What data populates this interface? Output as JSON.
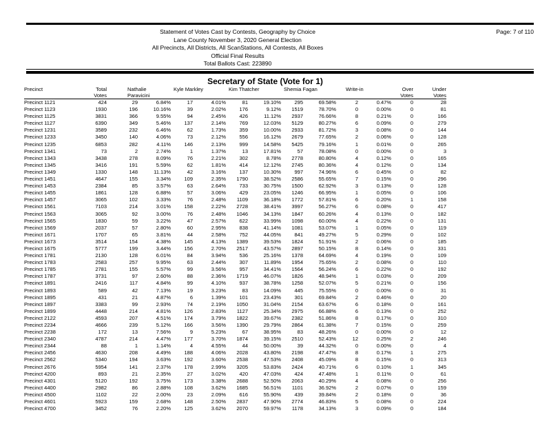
{
  "report": {
    "title_lines": [
      "Statement of Votes Cast by Contests, Geography by Choice",
      "Lane County November 3, 2020 General Election",
      "All Precincts, All Districts, All ScanStations, All Contests, All Boxes",
      "Official Final Results",
      "Total Ballots Cast: 223890"
    ],
    "page_label": "Page: 7 of 110",
    "contest_title": "Secretary of State (Vote for 1)"
  },
  "table": {
    "columns": [
      {
        "label": "Precinct",
        "label2": ""
      },
      {
        "label": "Total",
        "label2": "Votes"
      },
      {
        "label": "Nathalie",
        "label2": "Paravicini"
      },
      {
        "label": "Kyle Markley",
        "label2": ""
      },
      {
        "label": "Kim Thatcher",
        "label2": ""
      },
      {
        "label": "Shemia Fagan",
        "label2": ""
      },
      {
        "label": "Write-in",
        "label2": ""
      },
      {
        "label": "Over",
        "label2": "Votes"
      },
      {
        "label": "Under",
        "label2": "Votes"
      }
    ],
    "rows": [
      [
        "Precinct 1121",
        "424",
        "29",
        "6.84%",
        "17",
        "4.01%",
        "81",
        "19.10%",
        "295",
        "69.58%",
        "2",
        "0.47%",
        "0",
        "28"
      ],
      [
        "Precinct 1123",
        "1930",
        "196",
        "10.16%",
        "39",
        "2.02%",
        "176",
        "9.12%",
        "1519",
        "78.70%",
        "0",
        "0.00%",
        "0",
        "81"
      ],
      [
        "Precinct 1125",
        "3831",
        "366",
        "9.55%",
        "94",
        "2.45%",
        "426",
        "11.12%",
        "2937",
        "76.66%",
        "8",
        "0.21%",
        "0",
        "166"
      ],
      [
        "Precinct 1127",
        "6390",
        "349",
        "5.46%",
        "137",
        "2.14%",
        "769",
        "12.03%",
        "5129",
        "80.27%",
        "6",
        "0.09%",
        "0",
        "279"
      ],
      [
        "Precinct 1231",
        "3589",
        "232",
        "6.46%",
        "62",
        "1.73%",
        "359",
        "10.00%",
        "2933",
        "81.72%",
        "3",
        "0.08%",
        "0",
        "144"
      ],
      [
        "Precinct 1233",
        "3450",
        "140",
        "4.06%",
        "73",
        "2.12%",
        "556",
        "16.12%",
        "2679",
        "77.65%",
        "2",
        "0.06%",
        "0",
        "128"
      ],
      [
        "Precinct 1235",
        "6853",
        "282",
        "4.11%",
        "146",
        "2.13%",
        "999",
        "14.58%",
        "5425",
        "79.16%",
        "1",
        "0.01%",
        "0",
        "265"
      ],
      [
        "Precinct 1341",
        "73",
        "2",
        "2.74%",
        "1",
        "1.37%",
        "13",
        "17.81%",
        "57",
        "78.08%",
        "0",
        "0.00%",
        "0",
        "3"
      ],
      [
        "Precinct 1343",
        "3438",
        "278",
        "8.09%",
        "76",
        "2.21%",
        "302",
        "8.78%",
        "2778",
        "80.80%",
        "4",
        "0.12%",
        "0",
        "165"
      ],
      [
        "Precinct 1345",
        "3416",
        "191",
        "5.59%",
        "62",
        "1.81%",
        "414",
        "12.12%",
        "2745",
        "80.36%",
        "4",
        "0.12%",
        "0",
        "134"
      ],
      [
        "Precinct 1349",
        "1330",
        "148",
        "11.13%",
        "42",
        "3.16%",
        "137",
        "10.30%",
        "997",
        "74.96%",
        "6",
        "0.45%",
        "0",
        "82"
      ],
      [
        "Precinct 1451",
        "4647",
        "155",
        "3.34%",
        "109",
        "2.35%",
        "1790",
        "38.52%",
        "2586",
        "55.65%",
        "7",
        "0.15%",
        "0",
        "296"
      ],
      [
        "Precinct 1453",
        "2384",
        "85",
        "3.57%",
        "63",
        "2.64%",
        "733",
        "30.75%",
        "1500",
        "62.92%",
        "3",
        "0.13%",
        "0",
        "128"
      ],
      [
        "Precinct 1455",
        "1861",
        "128",
        "6.88%",
        "57",
        "3.06%",
        "429",
        "23.05%",
        "1246",
        "66.95%",
        "1",
        "0.05%",
        "0",
        "106"
      ],
      [
        "Precinct 1457",
        "3065",
        "102",
        "3.33%",
        "76",
        "2.48%",
        "1109",
        "36.18%",
        "1772",
        "57.81%",
        "6",
        "0.20%",
        "1",
        "158"
      ],
      [
        "Precinct 1561",
        "7103",
        "214",
        "3.01%",
        "158",
        "2.22%",
        "2728",
        "38.41%",
        "3997",
        "56.27%",
        "6",
        "0.08%",
        "0",
        "417"
      ],
      [
        "Precinct 1563",
        "3065",
        "92",
        "3.00%",
        "76",
        "2.48%",
        "1046",
        "34.13%",
        "1847",
        "60.26%",
        "4",
        "0.13%",
        "0",
        "182"
      ],
      [
        "Precinct 1565",
        "1830",
        "59",
        "3.22%",
        "47",
        "2.57%",
        "622",
        "33.99%",
        "1098",
        "60.00%",
        "4",
        "0.22%",
        "0",
        "131"
      ],
      [
        "Precinct 1569",
        "2037",
        "57",
        "2.80%",
        "60",
        "2.95%",
        "838",
        "41.14%",
        "1081",
        "53.07%",
        "1",
        "0.05%",
        "0",
        "119"
      ],
      [
        "Precinct 1671",
        "1707",
        "65",
        "3.81%",
        "44",
        "2.58%",
        "752",
        "44.05%",
        "841",
        "49.27%",
        "5",
        "0.29%",
        "0",
        "102"
      ],
      [
        "Precinct 1673",
        "3514",
        "154",
        "4.38%",
        "145",
        "4.13%",
        "1389",
        "39.53%",
        "1824",
        "51.91%",
        "2",
        "0.06%",
        "0",
        "185"
      ],
      [
        "Precinct 1675",
        "5777",
        "199",
        "3.44%",
        "156",
        "2.70%",
        "2517",
        "43.57%",
        "2897",
        "50.15%",
        "8",
        "0.14%",
        "0",
        "331"
      ],
      [
        "Precinct 1781",
        "2130",
        "128",
        "6.01%",
        "84",
        "3.94%",
        "536",
        "25.16%",
        "1378",
        "64.69%",
        "4",
        "0.19%",
        "0",
        "109"
      ],
      [
        "Precinct 1783",
        "2583",
        "257",
        "9.95%",
        "63",
        "2.44%",
        "307",
        "11.89%",
        "1954",
        "75.65%",
        "2",
        "0.08%",
        "0",
        "110"
      ],
      [
        "Precinct 1785",
        "2781",
        "155",
        "5.57%",
        "99",
        "3.56%",
        "957",
        "34.41%",
        "1564",
        "56.24%",
        "6",
        "0.22%",
        "0",
        "192"
      ],
      [
        "Precinct 1787",
        "3731",
        "97",
        "2.60%",
        "88",
        "2.36%",
        "1719",
        "46.07%",
        "1826",
        "48.94%",
        "1",
        "0.03%",
        "0",
        "209"
      ],
      [
        "Precinct 1891",
        "2416",
        "117",
        "4.84%",
        "99",
        "4.10%",
        "937",
        "38.78%",
        "1258",
        "52.07%",
        "5",
        "0.21%",
        "0",
        "156"
      ],
      [
        "Precinct 1893",
        "589",
        "42",
        "7.13%",
        "19",
        "3.23%",
        "83",
        "14.09%",
        "445",
        "75.55%",
        "0",
        "0.00%",
        "0",
        "31"
      ],
      [
        "Precinct 1895",
        "431",
        "21",
        "4.87%",
        "6",
        "1.39%",
        "101",
        "23.43%",
        "301",
        "69.84%",
        "2",
        "0.46%",
        "0",
        "20"
      ],
      [
        "Precinct 1897",
        "3383",
        "99",
        "2.93%",
        "74",
        "2.19%",
        "1050",
        "31.04%",
        "2154",
        "63.67%",
        "6",
        "0.18%",
        "0",
        "161"
      ],
      [
        "Precinct 1899",
        "4448",
        "214",
        "4.81%",
        "126",
        "2.83%",
        "1127",
        "25.34%",
        "2975",
        "66.88%",
        "6",
        "0.13%",
        "0",
        "252"
      ],
      [
        "Precinct 2122",
        "4593",
        "207",
        "4.51%",
        "174",
        "3.79%",
        "1822",
        "39.67%",
        "2382",
        "51.86%",
        "8",
        "0.17%",
        "0",
        "310"
      ],
      [
        "Precinct 2234",
        "4666",
        "239",
        "5.12%",
        "166",
        "3.56%",
        "1390",
        "29.79%",
        "2864",
        "61.38%",
        "7",
        "0.15%",
        "0",
        "259"
      ],
      [
        "Precinct 2238",
        "172",
        "13",
        "7.56%",
        "9",
        "5.23%",
        "67",
        "38.95%",
        "83",
        "48.26%",
        "0",
        "0.00%",
        "0",
        "12"
      ],
      [
        "Precinct 2340",
        "4787",
        "214",
        "4.47%",
        "177",
        "3.70%",
        "1874",
        "39.15%",
        "2510",
        "52.43%",
        "12",
        "0.25%",
        "2",
        "246"
      ],
      [
        "Precinct 2344",
        "88",
        "1",
        "1.14%",
        "4",
        "4.55%",
        "44",
        "50.00%",
        "39",
        "44.32%",
        "0",
        "0.00%",
        "0",
        "4"
      ],
      [
        "Precinct 2456",
        "4630",
        "208",
        "4.49%",
        "188",
        "4.06%",
        "2028",
        "43.80%",
        "2198",
        "47.47%",
        "8",
        "0.17%",
        "1",
        "275"
      ],
      [
        "Precinct 2562",
        "5340",
        "194",
        "3.63%",
        "192",
        "3.60%",
        "2538",
        "47.53%",
        "2408",
        "45.09%",
        "8",
        "0.15%",
        "0",
        "313"
      ],
      [
        "Precinct 2676",
        "5954",
        "141",
        "2.37%",
        "178",
        "2.99%",
        "3205",
        "53.83%",
        "2424",
        "40.71%",
        "6",
        "0.10%",
        "1",
        "345"
      ],
      [
        "Precinct 4200",
        "893",
        "21",
        "2.35%",
        "27",
        "3.02%",
        "420",
        "47.03%",
        "424",
        "47.48%",
        "1",
        "0.11%",
        "0",
        "61"
      ],
      [
        "Precinct 4301",
        "5120",
        "192",
        "3.75%",
        "173",
        "3.38%",
        "2688",
        "52.50%",
        "2063",
        "40.29%",
        "4",
        "0.08%",
        "0",
        "256"
      ],
      [
        "Precinct 4400",
        "2982",
        "86",
        "2.88%",
        "108",
        "3.62%",
        "1685",
        "56.51%",
        "1101",
        "36.92%",
        "2",
        "0.07%",
        "0",
        "159"
      ],
      [
        "Precinct 4500",
        "1102",
        "22",
        "2.00%",
        "23",
        "2.09%",
        "616",
        "55.90%",
        "439",
        "39.84%",
        "2",
        "0.18%",
        "0",
        "36"
      ],
      [
        "Precinct 4601",
        "5923",
        "159",
        "2.68%",
        "148",
        "2.50%",
        "2837",
        "47.90%",
        "2774",
        "46.83%",
        "5",
        "0.08%",
        "0",
        "224"
      ],
      [
        "Precinct 4700",
        "3452",
        "76",
        "2.20%",
        "125",
        "3.62%",
        "2070",
        "59.97%",
        "1178",
        "34.13%",
        "3",
        "0.09%",
        "0",
        "184"
      ]
    ]
  }
}
